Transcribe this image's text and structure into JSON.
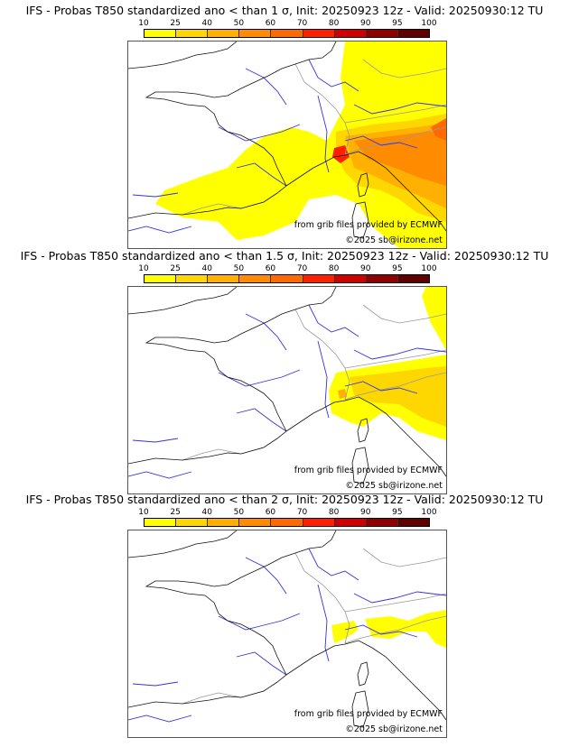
{
  "colorbar": {
    "ticks": [
      "10",
      "25",
      "40",
      "50",
      "60",
      "70",
      "80",
      "90",
      "95",
      "100"
    ],
    "colors": [
      "#ffff00",
      "#ffd700",
      "#ffb000",
      "#ff8c00",
      "#ff6a00",
      "#ff2000",
      "#d00000",
      "#900000",
      "#600000"
    ]
  },
  "panels": [
    {
      "title": "IFS - Probas T850  standardized ano < than 1 σ, Init: 20250923 12z - Valid: 20250930:12 TU",
      "threshold": "1 σ",
      "credit_source": "from grib files provided by ECMWF",
      "credit_copyright": "©2025 sb@irizone.net"
    },
    {
      "title": "IFS - Probas T850  standardized ano < than 1.5 σ, Init: 20250923 12z - Valid: 20250930:12 TU",
      "threshold": "1.5 σ",
      "credit_source": "from grib files provided by ECMWF",
      "credit_copyright": "©2025 sb@irizone.net"
    },
    {
      "title": "IFS - Probas T850  standardized ano < than 2 σ, Init: 20250923 12z - Valid: 20250930:12 TU",
      "threshold": "2 σ",
      "credit_source": "from grib files provided by ECMWF",
      "credit_copyright": "©2025 sb@irizone.net"
    }
  ]
}
